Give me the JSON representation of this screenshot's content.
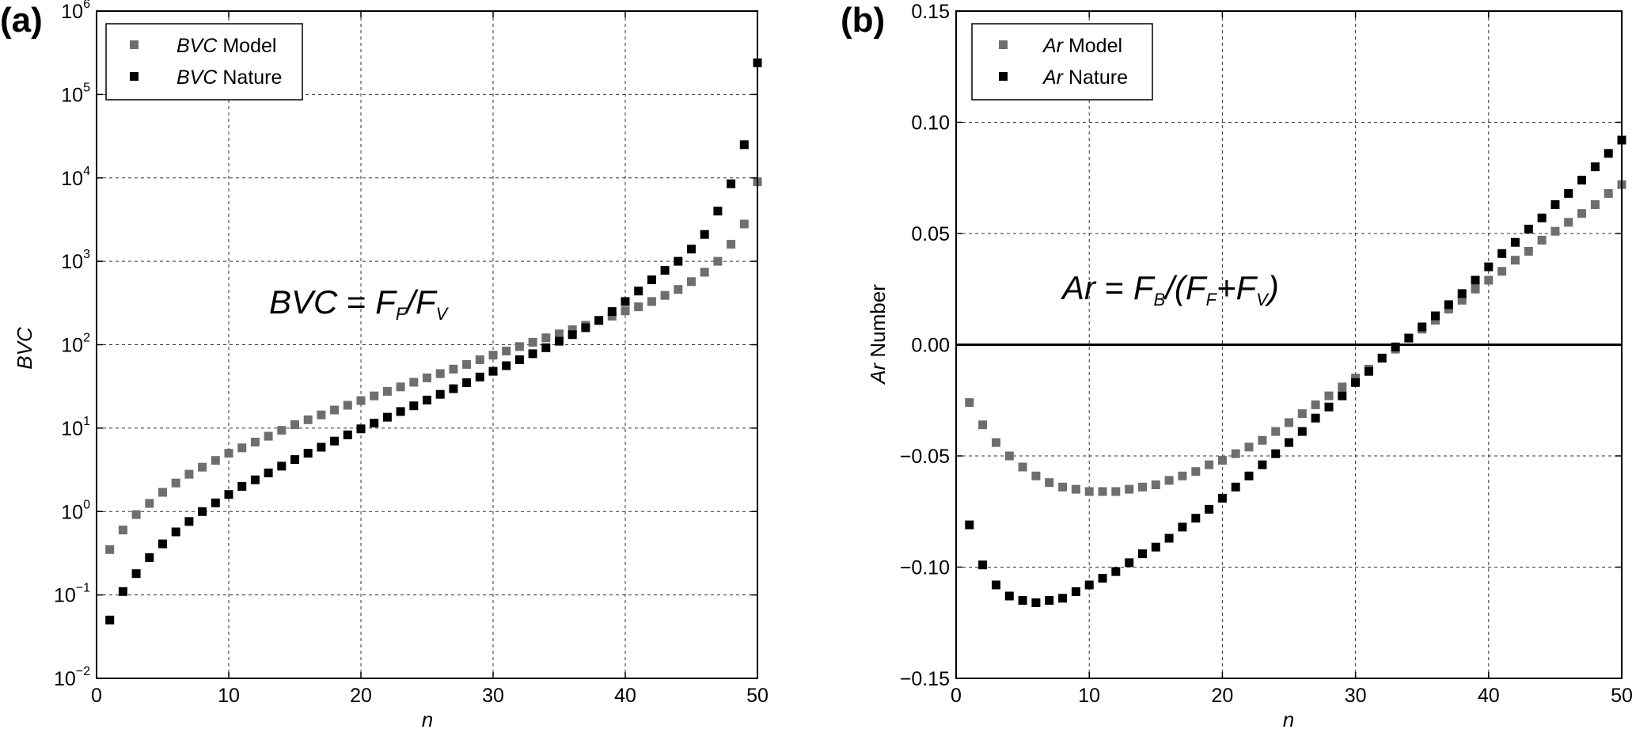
{
  "colors": {
    "model": "#6e6e6e",
    "nature": "#000000"
  },
  "chart_data": [
    {
      "panel": "(a)",
      "type": "scatter",
      "xlabel": "n",
      "ylabel": "BVC",
      "yscale": "log",
      "xlim": [
        0,
        50
      ],
      "ylim": [
        0.01,
        1000000
      ],
      "x_ticks": [
        "0",
        "10",
        "20",
        "30",
        "40",
        "50"
      ],
      "y_ticks": [
        {
          "base": "10",
          "exp": "−2"
        },
        {
          "base": "10",
          "exp": "−1"
        },
        {
          "base": "10",
          "exp": "0"
        },
        {
          "base": "10",
          "exp": "1"
        },
        {
          "base": "10",
          "exp": "2"
        },
        {
          "base": "10",
          "exp": "3"
        },
        {
          "base": "10",
          "exp": "4"
        },
        {
          "base": "10",
          "exp": "5"
        },
        {
          "base": "10",
          "exp": "6"
        }
      ],
      "grid": true,
      "legend_position": "top-left",
      "annotation": {
        "lhs": "BVC",
        "eq": " = ",
        "num": "F",
        "num_sub": "F",
        "slash": "/",
        "den": "F",
        "den_sub": "V"
      },
      "series": [
        {
          "name": "Model",
          "name_italic": "BVC",
          "color": "#6e6e6e",
          "x": [
            1,
            2,
            3,
            4,
            5,
            6,
            7,
            8,
            9,
            10,
            11,
            12,
            13,
            14,
            15,
            16,
            17,
            18,
            19,
            20,
            21,
            22,
            23,
            24,
            25,
            26,
            27,
            28,
            29,
            30,
            31,
            32,
            33,
            34,
            35,
            36,
            37,
            38,
            39,
            40,
            41,
            42,
            43,
            44,
            45,
            46,
            47,
            48,
            49,
            50
          ],
          "values": [
            0.35,
            0.6,
            0.92,
            1.25,
            1.7,
            2.2,
            2.8,
            3.4,
            4.1,
            5.0,
            5.8,
            6.8,
            8.0,
            9.4,
            11,
            12.6,
            14.4,
            16.5,
            18.8,
            21.4,
            24.3,
            27.6,
            31.2,
            35.5,
            40,
            45,
            51,
            58,
            66,
            75,
            84,
            95,
            107,
            121,
            135,
            151,
            171,
            196,
            220,
            255,
            285,
            330,
            390,
            460,
            570,
            740,
            1000,
            1600,
            2800,
            9000
          ]
        },
        {
          "name": "Nature",
          "name_italic": "BVC",
          "color": "#000000",
          "x": [
            1,
            2,
            3,
            4,
            5,
            6,
            7,
            8,
            9,
            10,
            11,
            12,
            13,
            14,
            15,
            16,
            17,
            18,
            19,
            20,
            21,
            22,
            23,
            24,
            25,
            26,
            27,
            28,
            29,
            30,
            31,
            32,
            33,
            34,
            35,
            36,
            37,
            38,
            39,
            40,
            41,
            42,
            43,
            44,
            45,
            46,
            47,
            48,
            49,
            50
          ],
          "values": [
            0.05,
            0.11,
            0.18,
            0.28,
            0.41,
            0.57,
            0.76,
            1.0,
            1.27,
            1.6,
            2.0,
            2.4,
            2.9,
            3.5,
            4.2,
            5.0,
            5.9,
            7.0,
            8.3,
            9.8,
            11.5,
            13.5,
            15.8,
            18.5,
            21.7,
            25.4,
            29.7,
            35,
            41,
            48,
            56,
            66,
            78,
            92,
            110,
            132,
            160,
            195,
            250,
            330,
            440,
            600,
            780,
            1000,
            1400,
            2100,
            4000,
            8500,
            25000,
            240000
          ]
        }
      ]
    },
    {
      "panel": "(b)",
      "type": "scatter",
      "xlabel": "n",
      "ylabel_italic": "Ar",
      "ylabel_rest": " Number",
      "xlim": [
        0,
        50
      ],
      "ylim": [
        -0.15,
        0.15
      ],
      "x_ticks": [
        "0",
        "10",
        "20",
        "30",
        "40",
        "50"
      ],
      "y_ticks": [
        "−0.15",
        "−0.10",
        "−0.05",
        "0.00",
        "0.05",
        "0.10",
        "0.15"
      ],
      "grid": true,
      "zero_line": true,
      "legend_position": "top-left",
      "annotation": {
        "lhs": "Ar",
        "eq": " = ",
        "num": "F",
        "num_sub": "B",
        "open": "/(",
        "a": "F",
        "a_sub": "F",
        "plus": "+",
        "b": "F",
        "b_sub": "V",
        "close": ")"
      },
      "series": [
        {
          "name": "Model",
          "name_italic": "Ar",
          "color": "#6e6e6e",
          "x": [
            1,
            2,
            3,
            4,
            5,
            6,
            7,
            8,
            9,
            10,
            11,
            12,
            13,
            14,
            15,
            16,
            17,
            18,
            19,
            20,
            21,
            22,
            23,
            24,
            25,
            26,
            27,
            28,
            29,
            30,
            31,
            32,
            33,
            34,
            35,
            36,
            37,
            38,
            39,
            40,
            41,
            42,
            43,
            44,
            45,
            46,
            47,
            48,
            49,
            50
          ],
          "values": [
            -0.026,
            -0.036,
            -0.044,
            -0.05,
            -0.055,
            -0.059,
            -0.062,
            -0.064,
            -0.065,
            -0.066,
            -0.066,
            -0.066,
            -0.065,
            -0.064,
            -0.063,
            -0.061,
            -0.059,
            -0.057,
            -0.054,
            -0.052,
            -0.049,
            -0.046,
            -0.043,
            -0.039,
            -0.035,
            -0.031,
            -0.027,
            -0.023,
            -0.019,
            -0.015,
            -0.011,
            -0.006,
            -0.002,
            0.003,
            0.007,
            0.011,
            0.016,
            0.02,
            0.025,
            0.029,
            0.033,
            0.038,
            0.042,
            0.047,
            0.051,
            0.055,
            0.059,
            0.063,
            0.068,
            0.072
          ]
        },
        {
          "name": "Nature",
          "name_italic": "Ar",
          "color": "#000000",
          "x": [
            1,
            2,
            3,
            4,
            5,
            6,
            7,
            8,
            9,
            10,
            11,
            12,
            13,
            14,
            15,
            16,
            17,
            18,
            19,
            20,
            21,
            22,
            23,
            24,
            25,
            26,
            27,
            28,
            29,
            30,
            31,
            32,
            33,
            34,
            35,
            36,
            37,
            38,
            39,
            40,
            41,
            42,
            43,
            44,
            45,
            46,
            47,
            48,
            49,
            50
          ],
          "values": [
            -0.081,
            -0.099,
            -0.108,
            -0.113,
            -0.115,
            -0.116,
            -0.115,
            -0.114,
            -0.111,
            -0.108,
            -0.105,
            -0.102,
            -0.098,
            -0.094,
            -0.091,
            -0.087,
            -0.082,
            -0.078,
            -0.074,
            -0.069,
            -0.064,
            -0.059,
            -0.054,
            -0.049,
            -0.044,
            -0.039,
            -0.033,
            -0.028,
            -0.023,
            -0.017,
            -0.012,
            -0.006,
            -0.001,
            0.003,
            0.008,
            0.013,
            0.018,
            0.023,
            0.029,
            0.035,
            0.041,
            0.046,
            0.052,
            0.057,
            0.063,
            0.068,
            0.074,
            0.08,
            0.086,
            0.092
          ]
        }
      ]
    }
  ]
}
